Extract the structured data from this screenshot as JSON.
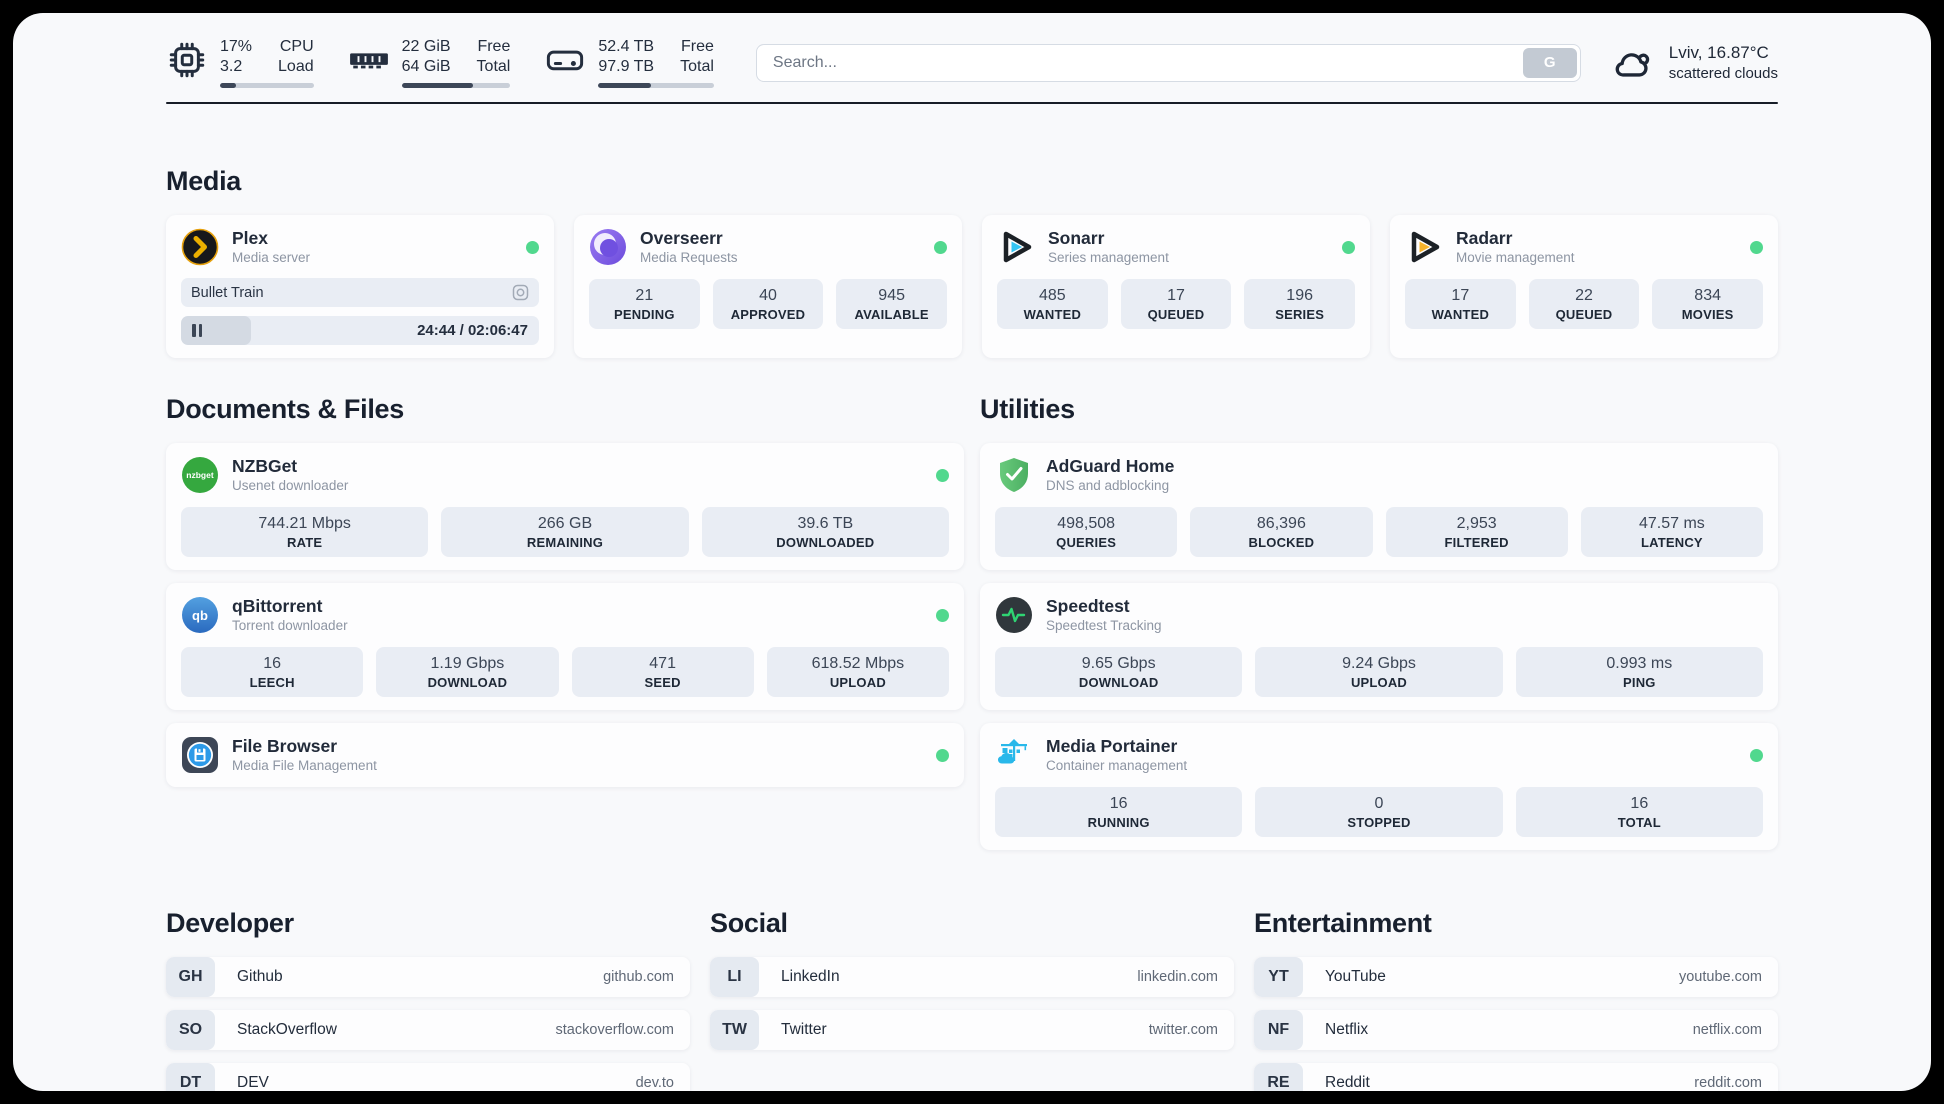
{
  "header": {
    "stats": [
      {
        "icon": "cpu-icon",
        "value_top": "17%",
        "value_bottom": "3.2",
        "label_top": "CPU",
        "label_bottom": "Load",
        "progress_pct": 17
      },
      {
        "icon": "ram-icon",
        "value_top": "22 GiB",
        "value_bottom": "64 GiB",
        "label_top": "Free",
        "label_bottom": "Total",
        "progress_pct": 66
      },
      {
        "icon": "disk-icon",
        "value_top": "52.4 TB",
        "value_bottom": "97.9 TB",
        "label_top": "Free",
        "label_bottom": "Total",
        "progress_pct": 46
      }
    ],
    "search": {
      "placeholder": "Search...",
      "button_label": "G"
    },
    "weather": {
      "location_temp": "Lviv, 16.87°C",
      "condition": "scattered clouds"
    }
  },
  "media": {
    "heading": "Media",
    "plex": {
      "name": "Plex",
      "desc": "Media server",
      "status": "online",
      "now_playing": "Bullet Train",
      "time": "24:44 / 02:06:47",
      "progress_pct": 19.5
    },
    "apps": [
      {
        "name": "Overseerr",
        "desc": "Media Requests",
        "stats": [
          {
            "value": "21",
            "label": "PENDING"
          },
          {
            "value": "40",
            "label": "APPROVED"
          },
          {
            "value": "945",
            "label": "AVAILABLE"
          }
        ]
      },
      {
        "name": "Sonarr",
        "desc": "Series management",
        "stats": [
          {
            "value": "485",
            "label": "WANTED"
          },
          {
            "value": "17",
            "label": "QUEUED"
          },
          {
            "value": "196",
            "label": "SERIES"
          }
        ]
      },
      {
        "name": "Radarr",
        "desc": "Movie management",
        "stats": [
          {
            "value": "17",
            "label": "WANTED"
          },
          {
            "value": "22",
            "label": "QUEUED"
          },
          {
            "value": "834",
            "label": "MOVIES"
          }
        ]
      }
    ]
  },
  "docs": {
    "heading": "Documents & Files",
    "apps": [
      {
        "name": "NZBGet",
        "desc": "Usenet downloader",
        "stats": [
          {
            "value": "744.21 Mbps",
            "label": "RATE"
          },
          {
            "value": "266 GB",
            "label": "REMAINING"
          },
          {
            "value": "39.6 TB",
            "label": "DOWNLOADED"
          }
        ]
      },
      {
        "name": "qBittorrent",
        "desc": "Torrent downloader",
        "stats": [
          {
            "value": "16",
            "label": "LEECH"
          },
          {
            "value": "1.19 Gbps",
            "label": "DOWNLOAD"
          },
          {
            "value": "471",
            "label": "SEED"
          },
          {
            "value": "618.52 Mbps",
            "label": "UPLOAD"
          }
        ]
      },
      {
        "name": "File Browser",
        "desc": "Media File Management"
      }
    ]
  },
  "utilities": {
    "heading": "Utilities",
    "apps": [
      {
        "name": "AdGuard Home",
        "desc": "DNS and adblocking",
        "stats": [
          {
            "value": "498,508",
            "label": "QUERIES"
          },
          {
            "value": "86,396",
            "label": "BLOCKED"
          },
          {
            "value": "2,953",
            "label": "FILTERED"
          },
          {
            "value": "47.57 ms",
            "label": "LATENCY"
          }
        ]
      },
      {
        "name": "Speedtest",
        "desc": "Speedtest Tracking",
        "stats": [
          {
            "value": "9.65 Gbps",
            "label": "DOWNLOAD"
          },
          {
            "value": "9.24 Gbps",
            "label": "UPLOAD"
          },
          {
            "value": "0.993 ms",
            "label": "PING"
          }
        ]
      },
      {
        "name": "Media Portainer",
        "desc": "Container management",
        "stats": [
          {
            "value": "16",
            "label": "RUNNING"
          },
          {
            "value": "0",
            "label": "STOPPED"
          },
          {
            "value": "16",
            "label": "TOTAL"
          }
        ]
      }
    ]
  },
  "bookmarks": [
    {
      "heading": "Developer",
      "links": [
        {
          "abbr": "GH",
          "name": "Github",
          "url": "github.com"
        },
        {
          "abbr": "SO",
          "name": "StackOverflow",
          "url": "stackoverflow.com"
        },
        {
          "abbr": "DT",
          "name": "DEV",
          "url": "dev.to"
        }
      ]
    },
    {
      "heading": "Social",
      "links": [
        {
          "abbr": "LI",
          "name": "LinkedIn",
          "url": "linkedin.com"
        },
        {
          "abbr": "TW",
          "name": "Twitter",
          "url": "twitter.com"
        }
      ]
    },
    {
      "heading": "Entertainment",
      "links": [
        {
          "abbr": "YT",
          "name": "YouTube",
          "url": "youtube.com"
        },
        {
          "abbr": "NF",
          "name": "Netflix",
          "url": "netflix.com"
        },
        {
          "abbr": "RE",
          "name": "Reddit",
          "url": "reddit.com"
        }
      ]
    }
  ],
  "colors": {
    "status_online": "#51d88e",
    "accent_text": "#242e3e",
    "stat_box_bg": "#e9edf4"
  }
}
